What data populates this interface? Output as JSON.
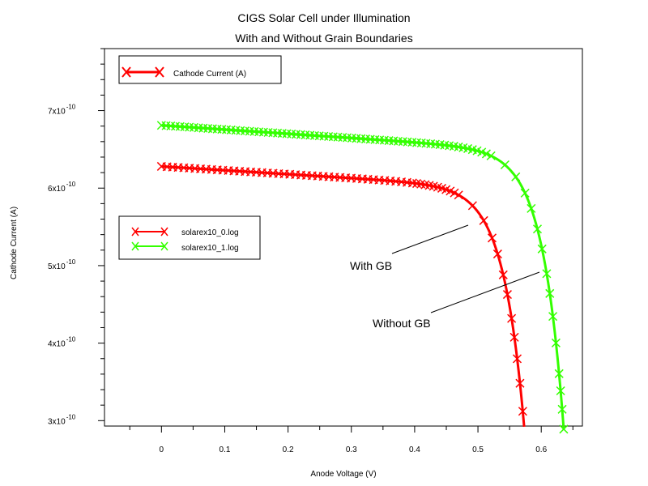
{
  "chart_data": {
    "type": "line",
    "title": "CIGS Solar Cell under Illumination",
    "subtitle": "With and Without Grain Boundaries",
    "xlabel": "Anode Voltage (V)",
    "ylabel": "Cathode Current (A)",
    "xlim": [
      -0.09,
      0.665
    ],
    "ylim": [
      2.93e-10,
      7.8e-10
    ],
    "x_ticks": [
      0,
      0.1,
      0.2,
      0.3,
      0.4,
      0.5,
      0.6
    ],
    "x_tick_labels": [
      "0",
      "0.1",
      "0.2",
      "0.3",
      "0.4",
      "0.5",
      "0.6"
    ],
    "y_ticks": [
      3e-10,
      4e-10,
      5e-10,
      6e-10,
      7e-10
    ],
    "y_tick_labels": [
      {
        "mantissa": "3x10",
        "exponent": "-10"
      },
      {
        "mantissa": "4x10",
        "exponent": "-10"
      },
      {
        "mantissa": "5x10",
        "exponent": "-10"
      },
      {
        "mantissa": "6x10",
        "exponent": "-10"
      },
      {
        "mantissa": "7x10",
        "exponent": "-10"
      }
    ],
    "grid": false,
    "legend_top": {
      "label": "Cathode Current (A)",
      "color": "#ff0000",
      "placement": "top-left"
    },
    "series": [
      {
        "name": "solarex10_0.log",
        "color": "#ff0000",
        "Isc": 6.28e-10,
        "Voc": 0.595,
        "marker": "x"
      },
      {
        "name": "solarex10_1.log",
        "color": "#33ff00",
        "Isc": 6.81e-10,
        "Voc": 0.655,
        "marker": "x"
      }
    ],
    "annotations": [
      {
        "text": "With GB"
      },
      {
        "text": "Without GB"
      }
    ]
  }
}
